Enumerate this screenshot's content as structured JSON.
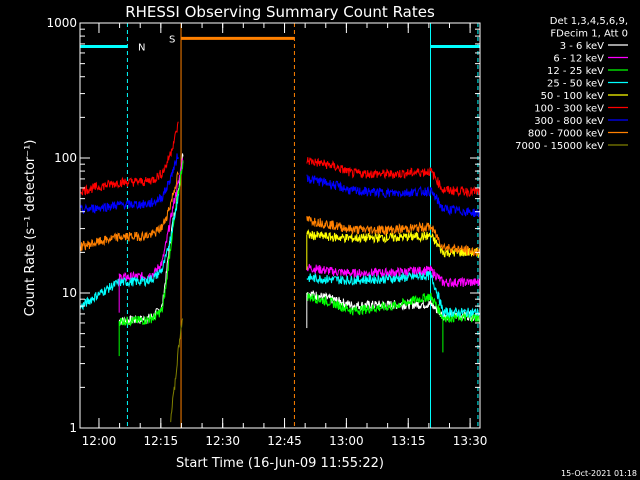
{
  "chart_data": {
    "type": "line",
    "title": "RHESSI Observing Summary Count Rates",
    "xlabel": "Start Time (16-Jun-09 11:55:22)",
    "ylabel": "Count Rate (s⁻¹ detector⁻¹)",
    "y_scale": "log",
    "ylim": [
      1,
      1000
    ],
    "y_ticks": [
      {
        "value": 1,
        "label": "1"
      },
      {
        "value": 10,
        "label": "10"
      },
      {
        "value": 100,
        "label": "100"
      },
      {
        "value": 1000,
        "label": "1000"
      }
    ],
    "xlim_minutes": [
      0,
      97
    ],
    "x_ticks": [
      {
        "minute": 4.6,
        "label": "12:00"
      },
      {
        "minute": 19.6,
        "label": "12:15"
      },
      {
        "minute": 34.6,
        "label": "12:30"
      },
      {
        "minute": 49.6,
        "label": "12:45"
      },
      {
        "minute": 64.6,
        "label": "13:00"
      },
      {
        "minute": 79.6,
        "label": "13:15"
      },
      {
        "minute": 94.6,
        "label": "13:30"
      }
    ],
    "legend_header": [
      "Det 1,3,4,5,6,9,",
      "FDecim 1, Att 0"
    ],
    "legend_position": "right",
    "series": [
      {
        "name": "3 - 6 keV",
        "color": "#ffffff",
        "points": [
          [
            9.5,
            6.2
          ],
          [
            16,
            6.4
          ],
          [
            18,
            6.8
          ],
          [
            20,
            8
          ],
          [
            21,
            14
          ],
          [
            22,
            26
          ],
          [
            23,
            40
          ],
          [
            24,
            62
          ],
          [
            25,
            110
          ]
        ],
        "points2": [
          [
            55,
            10
          ],
          [
            61,
            9
          ],
          [
            66,
            8.1
          ],
          [
            76,
            8.2
          ],
          [
            85,
            8.3
          ],
          [
            88,
            6.8
          ],
          [
            97,
            6.8
          ]
        ]
      },
      {
        "name": "6 - 12 keV",
        "color": "#ff00ff",
        "points": [
          [
            9.5,
            13
          ],
          [
            16,
            13.3
          ],
          [
            18,
            14
          ],
          [
            20,
            17
          ],
          [
            21,
            24
          ],
          [
            22,
            35
          ],
          [
            23,
            50
          ],
          [
            24,
            68
          ],
          [
            25,
            100
          ]
        ],
        "points2": [
          [
            55,
            15.5
          ],
          [
            61,
            14.5
          ],
          [
            66,
            14
          ],
          [
            76,
            14.2
          ],
          [
            85,
            14.8
          ],
          [
            88,
            12
          ],
          [
            97,
            12
          ]
        ]
      },
      {
        "name": "12 - 25 keV",
        "color": "#00ff00",
        "points": [
          [
            9.5,
            6.2
          ],
          [
            16,
            6.3
          ],
          [
            18,
            6.6
          ],
          [
            20,
            7.5
          ],
          [
            21,
            12
          ],
          [
            22,
            22
          ],
          [
            23,
            36
          ],
          [
            24,
            58
          ],
          [
            25,
            95
          ]
        ],
        "points2": [
          [
            55,
            9.5
          ],
          [
            61,
            8.5
          ],
          [
            66,
            7.4
          ],
          [
            76,
            8
          ],
          [
            85,
            9.5
          ],
          [
            88,
            6.6
          ],
          [
            97,
            6.6
          ]
        ]
      },
      {
        "name": "25 - 50 keV",
        "color": "#00ffff",
        "points": [
          [
            0,
            7.8
          ],
          [
            9.5,
            12
          ],
          [
            16,
            12.3
          ],
          [
            18,
            13
          ],
          [
            20,
            15
          ],
          [
            21,
            19
          ],
          [
            22,
            26
          ],
          [
            23,
            38
          ],
          [
            24,
            55
          ]
        ],
        "points2": [
          [
            55,
            13
          ],
          [
            61,
            12.6
          ],
          [
            66,
            12.5
          ],
          [
            76,
            12.8
          ],
          [
            85,
            13.5
          ],
          [
            88,
            7.2
          ],
          [
            97,
            7.2
          ]
        ]
      },
      {
        "name": "50 - 100 keV",
        "color": "#ffff00",
        "points": [],
        "points2": [
          [
            55,
            27
          ],
          [
            61,
            26
          ],
          [
            66,
            25.5
          ],
          [
            76,
            25.8
          ],
          [
            85,
            26.5
          ],
          [
            88,
            20
          ],
          [
            97,
            20
          ]
        ]
      },
      {
        "name": "100 - 300 keV",
        "color": "#ff0000",
        "points": [
          [
            0,
            57
          ],
          [
            9.5,
            66
          ],
          [
            16,
            67
          ],
          [
            18,
            70
          ],
          [
            20,
            78
          ],
          [
            21,
            90
          ],
          [
            22,
            110
          ],
          [
            23,
            140
          ],
          [
            24,
            185
          ]
        ],
        "points2": [
          [
            55,
            96
          ],
          [
            61,
            88
          ],
          [
            66,
            77
          ],
          [
            76,
            76
          ],
          [
            85,
            80
          ],
          [
            88,
            58
          ],
          [
            97,
            56
          ]
        ]
      },
      {
        "name": "300 - 800 keV",
        "color": "#0000ff",
        "points": [
          [
            0,
            41
          ],
          [
            9.5,
            45
          ],
          [
            16,
            45.5
          ],
          [
            18,
            47
          ],
          [
            20,
            52
          ],
          [
            21,
            60
          ],
          [
            22,
            72
          ],
          [
            23,
            88
          ],
          [
            24,
            112
          ]
        ],
        "points2": [
          [
            55,
            71
          ],
          [
            61,
            64
          ],
          [
            66,
            57
          ],
          [
            76,
            55
          ],
          [
            85,
            57
          ],
          [
            88,
            42
          ],
          [
            97,
            39
          ]
        ]
      },
      {
        "name": "800 - 7000 keV",
        "color": "#ff8000",
        "points": [
          [
            0,
            22
          ],
          [
            9.5,
            26
          ],
          [
            16,
            26.5
          ],
          [
            18,
            27.5
          ],
          [
            20,
            31
          ],
          [
            21,
            37
          ],
          [
            22,
            46
          ],
          [
            23,
            60
          ],
          [
            24,
            80
          ]
        ],
        "points2": [
          [
            55,
            35
          ],
          [
            61,
            32
          ],
          [
            66,
            29.5
          ],
          [
            76,
            29.5
          ],
          [
            85,
            31
          ],
          [
            88,
            22
          ],
          [
            97,
            20
          ]
        ]
      },
      {
        "name": "7000 - 15000 keV",
        "color": "#808000",
        "points": [
          [
            22,
            1.2
          ],
          [
            23,
            2
          ],
          [
            24,
            4
          ],
          [
            25,
            7
          ]
        ],
        "points2": []
      }
    ],
    "markers": [
      {
        "label": "N",
        "color": "#00ffff",
        "level": 670,
        "from_minute": 0,
        "to_minute": 11.5
      },
      {
        "label": "S",
        "color": "#ff8000",
        "level": 770,
        "from_minute": 24.5,
        "to_minute": 52
      },
      {
        "label": "",
        "color": "#00ffff",
        "level": 670,
        "from_minute": 85,
        "to_minute": 97
      }
    ],
    "vertical_lines": [
      {
        "minute": 0,
        "color": "#00ffff",
        "style": "solid"
      },
      {
        "minute": 11.5,
        "color": "#00ffff",
        "style": "dashed"
      },
      {
        "minute": 24.5,
        "color": "#ff8000",
        "style": "solid"
      },
      {
        "minute": 52,
        "color": "#ff8000",
        "style": "dashed"
      },
      {
        "minute": 85,
        "color": "#00ffff",
        "style": "solid"
      },
      {
        "minute": 96.5,
        "color": "#00ffff",
        "style": "dashed"
      }
    ],
    "grid": false
  },
  "footer_date": "15-Oct-2021 01:18"
}
